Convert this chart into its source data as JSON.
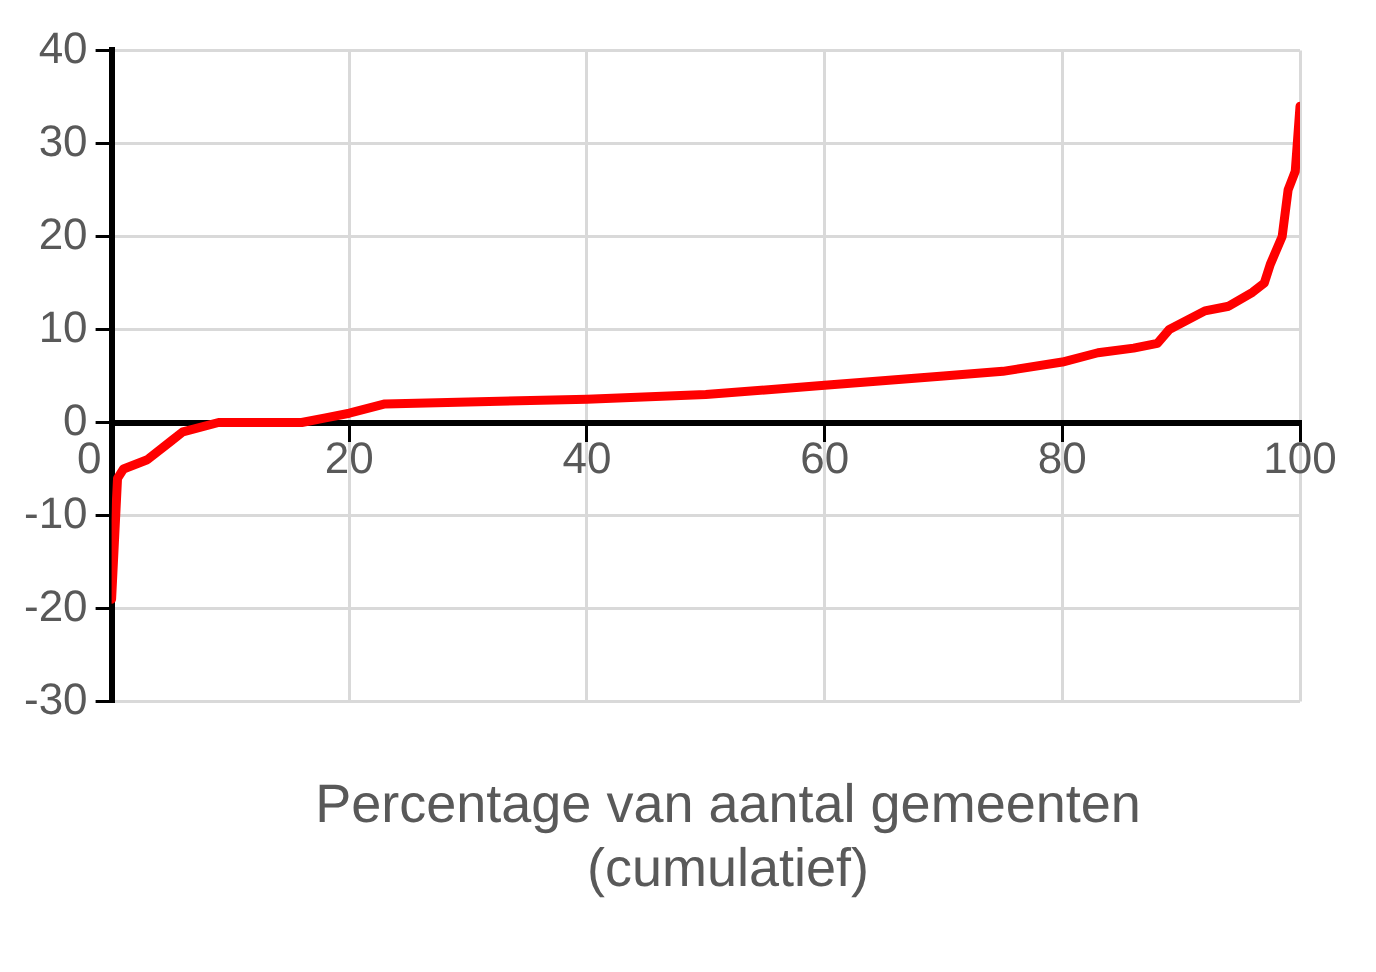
{
  "chart_data": {
    "type": "line",
    "xlabel": "Percentage van aantal gemeenten (cumulatief)",
    "xlim": [
      0,
      100
    ],
    "xticks": [
      0,
      20,
      40,
      60,
      80,
      100
    ],
    "ylim": [
      -30,
      40
    ],
    "yticks": [
      -30,
      -20,
      -10,
      0,
      10,
      20,
      30,
      40
    ],
    "grid": true,
    "legend": false,
    "marker": "none",
    "line_style": "solid",
    "series": [
      {
        "color": "#ff0000",
        "x": [
          0,
          0.5,
          1,
          3,
          5,
          6,
          9,
          16,
          18,
          20,
          23,
          30,
          40,
          50,
          60,
          70,
          75,
          80,
          83,
          86,
          88,
          89,
          92,
          94,
          96,
          97,
          97.5,
          98.5,
          99,
          99.6,
          100
        ],
        "values": [
          -19,
          -6,
          -5,
          -4,
          -2,
          -1,
          0,
          0,
          0.5,
          1,
          2,
          2.2,
          2.5,
          3,
          4,
          5,
          5.5,
          6.5,
          7.5,
          8,
          8.5,
          10,
          12,
          12.5,
          14,
          15,
          17,
          20,
          25,
          27,
          34
        ]
      }
    ]
  }
}
